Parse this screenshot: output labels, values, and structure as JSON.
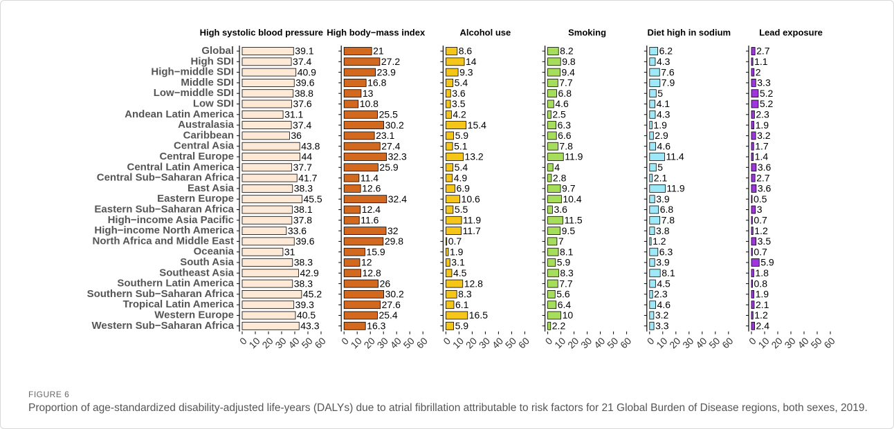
{
  "figure_label": "FIGURE 6",
  "caption": "Proportion of age-standardized disability-adjusted life-years (DALYs) due to atrial fibrillation attributable to risk factors for 21 Global Burden of Disease regions, both sexes, 2019.",
  "chart_data": [
    {
      "type": "bar",
      "title": "High systolic blood pressure",
      "color": "#fde9d6",
      "categories": [
        "Global",
        "High SDI",
        "High−middle SDI",
        "Middle SDI",
        "Low−middle SDI",
        "Low SDI",
        "Andean Latin America",
        "Australasia",
        "Caribbean",
        "Central Asia",
        "Central Europe",
        "Central Latin America",
        "Central Sub−Saharan Africa",
        "East Asia",
        "Eastern Europe",
        "Eastern Sub−Saharan Africa",
        "High−income Asia Pacific",
        "High−income North America",
        "North Africa and Middle East",
        "Oceania",
        "South Asia",
        "Southeast Asia",
        "Southern Latin America",
        "Southern Sub−Saharan Africa",
        "Tropical Latin America",
        "Western Europe",
        "Western Sub−Saharan Africa"
      ],
      "values": [
        39.1,
        37.4,
        40.9,
        39.6,
        38.8,
        37.6,
        31.1,
        37.4,
        36,
        43.8,
        44,
        37.7,
        41.7,
        38.3,
        45.5,
        38.1,
        37.8,
        33.6,
        39.6,
        31,
        38.3,
        42.9,
        38.3,
        45.2,
        39.3,
        40.5,
        43.3
      ],
      "xlim": [
        0,
        60
      ],
      "xticks": [
        0,
        10,
        20,
        30,
        40,
        50,
        60
      ]
    },
    {
      "type": "bar",
      "title": "High body−mass index",
      "color": "#d2691e",
      "values": [
        21,
        27.2,
        23.9,
        16.8,
        13,
        10.8,
        25.5,
        30.2,
        23.1,
        27.4,
        32.3,
        25.9,
        11.4,
        12.6,
        32.4,
        12.4,
        11.6,
        32,
        29.8,
        15.9,
        12,
        12.8,
        26,
        30.2,
        27.6,
        25.4,
        16.3
      ],
      "xlim": [
        0,
        60
      ],
      "xticks": [
        0,
        10,
        20,
        30,
        40,
        50,
        60
      ]
    },
    {
      "type": "bar",
      "title": "Alcohol use",
      "color": "#f5c518",
      "values": [
        8.6,
        14,
        9.3,
        5.4,
        3.6,
        3.5,
        4.2,
        15.4,
        5.9,
        5.1,
        13.2,
        5.4,
        4.9,
        6.9,
        10.6,
        5.5,
        11.9,
        11.7,
        0.7,
        1.9,
        3.1,
        4.5,
        12.8,
        8.3,
        6.1,
        16.5,
        5.9
      ],
      "xlim": [
        0,
        60
      ],
      "xticks": [
        0,
        10,
        20,
        30,
        40,
        50,
        60
      ]
    },
    {
      "type": "bar",
      "title": "Smoking",
      "color": "#a6de5c",
      "values": [
        8.2,
        9.8,
        9.4,
        7.7,
        6.8,
        4.6,
        2.5,
        6.3,
        6.6,
        7.8,
        11.9,
        4,
        2.8,
        9.7,
        10.4,
        3.6,
        11.5,
        9.5,
        7,
        8.1,
        5.9,
        8.3,
        7.7,
        5.6,
        6.4,
        10,
        2.2
      ],
      "xlim": [
        0,
        60
      ],
      "xticks": [
        0,
        10,
        20,
        30,
        40,
        50,
        60
      ]
    },
    {
      "type": "bar",
      "title": "Diet high in sodium",
      "color": "#9ee9f7",
      "values": [
        6.2,
        4.3,
        7.6,
        7.9,
        5,
        4.1,
        4.3,
        1.9,
        2.9,
        4.6,
        11.4,
        5,
        2.1,
        11.9,
        3.9,
        6.8,
        7.8,
        3.8,
        1.2,
        6.3,
        3.9,
        8.1,
        4.5,
        2.3,
        4.6,
        3.2,
        3.3
      ],
      "xlim": [
        0,
        60
      ],
      "xticks": [
        0,
        10,
        20,
        30,
        40,
        50,
        60
      ]
    },
    {
      "type": "bar",
      "title": "Lead exposure",
      "color": "#a035e0",
      "values": [
        2.7,
        1.1,
        2,
        3.3,
        5.2,
        5.2,
        2.3,
        1.9,
        3.2,
        1.7,
        1.4,
        3.6,
        2.7,
        3.6,
        0.5,
        3,
        0.7,
        1.2,
        3.5,
        0.7,
        5.9,
        1.8,
        0.8,
        1.9,
        2.1,
        1.2,
        2.4
      ],
      "xlim": [
        0,
        60
      ],
      "xticks": [
        0,
        10,
        20,
        30,
        40,
        50,
        60
      ]
    }
  ]
}
